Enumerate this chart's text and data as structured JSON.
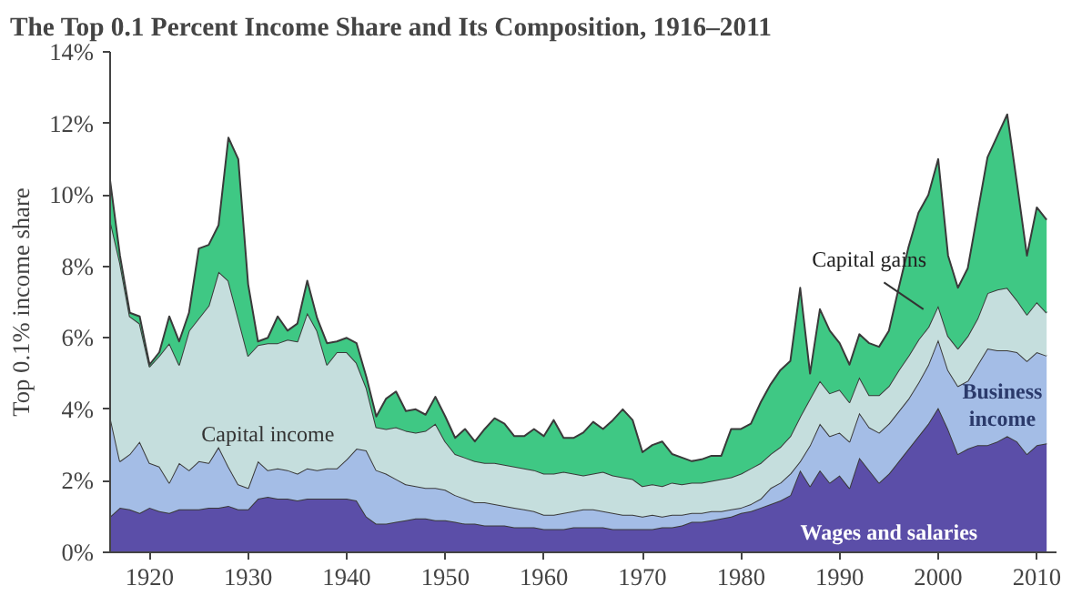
{
  "chart_data": {
    "type": "area",
    "stacked": true,
    "title": "The Top 0.1 Percent Income Share and Its Composition, 1916–2011",
    "ylabel": "Top 0.1% income share",
    "x": [
      1916,
      1917,
      1918,
      1919,
      1920,
      1921,
      1922,
      1923,
      1924,
      1925,
      1926,
      1927,
      1928,
      1929,
      1930,
      1931,
      1932,
      1933,
      1934,
      1935,
      1936,
      1937,
      1938,
      1939,
      1940,
      1941,
      1942,
      1943,
      1944,
      1945,
      1946,
      1947,
      1948,
      1949,
      1950,
      1951,
      1952,
      1953,
      1954,
      1955,
      1956,
      1957,
      1958,
      1959,
      1960,
      1961,
      1962,
      1963,
      1964,
      1965,
      1966,
      1967,
      1968,
      1969,
      1970,
      1971,
      1972,
      1973,
      1974,
      1975,
      1976,
      1977,
      1978,
      1979,
      1980,
      1981,
      1982,
      1983,
      1984,
      1985,
      1986,
      1987,
      1988,
      1989,
      1990,
      1991,
      1992,
      1993,
      1994,
      1995,
      1996,
      1997,
      1998,
      1999,
      2000,
      2001,
      2002,
      2003,
      2004,
      2005,
      2006,
      2007,
      2008,
      2009,
      2010,
      2011
    ],
    "xlim": [
      1916,
      2012
    ],
    "xticks": [
      1920,
      1930,
      1940,
      1950,
      1960,
      1970,
      1980,
      1990,
      2000,
      2010
    ],
    "ylim": [
      0,
      14
    ],
    "yticks": [
      {
        "value": 0,
        "label": "0%"
      },
      {
        "value": 2,
        "label": "2%"
      },
      {
        "value": 4,
        "label": "4%"
      },
      {
        "value": 6,
        "label": "6%"
      },
      {
        "value": 8,
        "label": "8%"
      },
      {
        "value": 10,
        "label": "10%"
      },
      {
        "value": 12,
        "label": "12%"
      },
      {
        "value": 14,
        "label": "14%"
      }
    ],
    "grid": false,
    "series": [
      {
        "name": "Wages and salaries",
        "color": "#5b4ea8",
        "values": [
          1.0,
          1.25,
          1.2,
          1.1,
          1.25,
          1.15,
          1.1,
          1.2,
          1.2,
          1.2,
          1.25,
          1.25,
          1.3,
          1.2,
          1.2,
          1.5,
          1.55,
          1.5,
          1.5,
          1.45,
          1.5,
          1.5,
          1.5,
          1.5,
          1.5,
          1.45,
          1.0,
          0.8,
          0.8,
          0.85,
          0.9,
          0.95,
          0.95,
          0.9,
          0.9,
          0.85,
          0.8,
          0.8,
          0.75,
          0.75,
          0.75,
          0.7,
          0.7,
          0.7,
          0.65,
          0.65,
          0.65,
          0.7,
          0.7,
          0.7,
          0.7,
          0.65,
          0.65,
          0.65,
          0.65,
          0.65,
          0.7,
          0.7,
          0.75,
          0.85,
          0.85,
          0.9,
          0.95,
          1.0,
          1.1,
          1.15,
          1.25,
          1.35,
          1.45,
          1.6,
          2.3,
          1.85,
          2.3,
          1.95,
          2.15,
          1.8,
          2.65,
          2.3,
          1.95,
          2.2,
          2.55,
          2.9,
          3.25,
          3.6,
          4.05,
          3.45,
          2.75,
          2.9,
          3.0,
          3.0,
          3.1,
          3.25,
          3.1,
          2.75,
          3.0,
          3.05
        ]
      },
      {
        "name": "Business income",
        "color": "#a4bde6",
        "values": [
          2.8,
          1.3,
          1.55,
          2.0,
          1.25,
          1.25,
          0.85,
          1.3,
          1.1,
          1.35,
          1.25,
          1.7,
          1.1,
          0.7,
          0.6,
          1.05,
          0.75,
          0.85,
          0.8,
          0.75,
          0.85,
          0.8,
          0.85,
          0.85,
          1.1,
          1.45,
          1.85,
          1.5,
          1.4,
          1.2,
          1.0,
          0.9,
          0.85,
          0.9,
          0.85,
          0.75,
          0.7,
          0.6,
          0.65,
          0.6,
          0.55,
          0.55,
          0.5,
          0.45,
          0.4,
          0.4,
          0.45,
          0.45,
          0.5,
          0.5,
          0.45,
          0.45,
          0.4,
          0.4,
          0.35,
          0.4,
          0.3,
          0.35,
          0.3,
          0.25,
          0.25,
          0.25,
          0.2,
          0.2,
          0.15,
          0.2,
          0.25,
          0.45,
          0.5,
          0.6,
          0.25,
          1.15,
          1.3,
          1.3,
          1.2,
          1.3,
          1.25,
          1.2,
          1.4,
          1.4,
          1.4,
          1.4,
          1.5,
          1.65,
          1.9,
          1.65,
          1.9,
          1.9,
          2.25,
          2.7,
          2.55,
          2.4,
          2.5,
          2.6,
          2.6,
          2.45
        ]
      },
      {
        "name": "Capital income",
        "color": "#c5dedd",
        "values": [
          5.5,
          5.55,
          3.85,
          3.3,
          2.7,
          3.1,
          3.9,
          2.75,
          3.9,
          4.0,
          4.4,
          4.9,
          5.2,
          4.65,
          3.7,
          3.25,
          3.55,
          3.5,
          3.65,
          3.7,
          4.35,
          3.9,
          2.9,
          3.25,
          3.0,
          2.4,
          1.75,
          1.2,
          1.25,
          1.45,
          1.5,
          1.5,
          1.6,
          1.8,
          1.35,
          1.15,
          1.15,
          1.15,
          1.1,
          1.15,
          1.15,
          1.15,
          1.15,
          1.15,
          1.15,
          1.15,
          1.15,
          1.05,
          0.95,
          1.0,
          1.1,
          1.05,
          1.05,
          1.0,
          0.85,
          0.85,
          0.85,
          0.9,
          0.85,
          0.85,
          0.85,
          0.85,
          0.9,
          0.9,
          0.95,
          1.0,
          1.0,
          0.95,
          1.0,
          1.05,
          1.25,
          1.3,
          1.2,
          1.2,
          1.2,
          1.1,
          1.0,
          0.9,
          1.05,
          1.05,
          1.15,
          1.2,
          1.2,
          1.05,
          0.95,
          0.95,
          1.05,
          1.25,
          1.3,
          1.55,
          1.7,
          1.75,
          1.45,
          1.3,
          1.4,
          1.2
        ]
      },
      {
        "name": "Capital gains",
        "color": "#3fc884",
        "values": [
          1.1,
          0.2,
          0.1,
          0.2,
          0.05,
          0.1,
          0.75,
          0.65,
          0.5,
          1.95,
          1.7,
          1.3,
          4.0,
          4.45,
          2.0,
          0.1,
          0.15,
          0.75,
          0.25,
          0.5,
          0.9,
          0.35,
          0.6,
          0.3,
          0.4,
          0.55,
          0.3,
          0.3,
          0.85,
          1.0,
          0.55,
          0.65,
          0.45,
          0.75,
          0.7,
          0.45,
          0.8,
          0.55,
          0.95,
          1.25,
          1.15,
          0.85,
          0.9,
          1.15,
          1.05,
          1.5,
          0.95,
          1.0,
          1.2,
          1.45,
          1.2,
          1.55,
          1.9,
          1.65,
          0.95,
          1.1,
          1.25,
          0.8,
          0.75,
          0.6,
          0.65,
          0.7,
          0.65,
          1.35,
          1.25,
          1.25,
          1.7,
          1.95,
          2.15,
          2.1,
          3.6,
          0.7,
          2.0,
          1.75,
          1.3,
          1.05,
          1.2,
          1.45,
          1.35,
          1.55,
          2.3,
          3.05,
          3.55,
          3.7,
          4.1,
          2.25,
          1.7,
          1.9,
          2.95,
          3.8,
          4.3,
          4.85,
          3.25,
          1.65,
          2.65,
          2.6
        ]
      }
    ]
  }
}
